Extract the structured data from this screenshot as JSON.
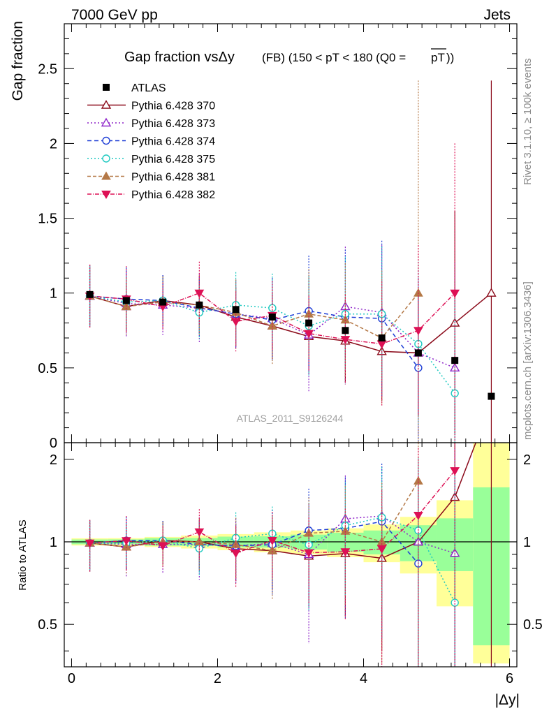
{
  "header": {
    "left": "7000 GeV pp",
    "right": "Jets"
  },
  "side_labels": {
    "rivet": "Rivet 3.1.10, ≥ 100k events",
    "mcplots": "mcplots.cern.ch [arXiv:1306.3436]"
  },
  "chart_data": {
    "type": "scatter",
    "title_main": "Gap fraction vsΔy",
    "title_sub": "(FB) (150 < pT < 180 (Q0 =",
    "title_overline": "pT",
    "title_close": "))",
    "watermark": "ATLAS_2011_S9126244",
    "xlabel": "|Δy|",
    "ylabel_top": "Gap fraction",
    "ylabel_bottom": "Ratio to ATLAS",
    "xlim": [
      -0.1,
      6.1
    ],
    "ylim_top": [
      0,
      2.8
    ],
    "ylim_bottom": [
      0.35,
      2.3
    ],
    "x_ticks": [
      "0",
      "2",
      "4",
      "6"
    ],
    "y_ticks_top": [
      "0",
      "0.5",
      "1",
      "1.5",
      "2",
      "2.5"
    ],
    "y_ticks_bottom": [
      "0.5",
      "1",
      "2"
    ],
    "legend_position": "top-left",
    "x": [
      0.25,
      0.75,
      1.25,
      1.75,
      2.25,
      2.75,
      3.25,
      3.75,
      4.25,
      4.75,
      5.25,
      5.75
    ],
    "data": {
      "name": "ATLAS",
      "values": [
        0.99,
        0.95,
        0.94,
        0.92,
        0.89,
        0.84,
        0.8,
        0.75,
        0.7,
        0.6,
        0.55,
        0.31
      ],
      "band_inner": [
        0.02,
        0.02,
        0.03,
        0.03,
        0.04,
        0.04,
        0.05,
        0.06,
        0.07,
        0.09,
        0.12,
        0.18
      ],
      "band_outer": [
        0.03,
        0.03,
        0.04,
        0.05,
        0.06,
        0.07,
        0.08,
        0.09,
        0.11,
        0.14,
        0.23,
        0.42
      ]
    },
    "series": [
      {
        "name": "Pythia 6.428 370",
        "color": "#8b0a1a",
        "marker": "triangle-up-open",
        "dash": "",
        "values": [
          0.98,
          0.91,
          0.95,
          0.92,
          0.84,
          0.78,
          0.71,
          0.68,
          0.61,
          0.6,
          0.8,
          1.0
        ],
        "errors": [
          0.2,
          0.16,
          0.17,
          0.19,
          0.2,
          0.22,
          0.25,
          0.28,
          0.33,
          0.42,
          0.75,
          1.42
        ]
      },
      {
        "name": "Pythia 6.428 373",
        "color": "#8e24c9",
        "marker": "triangle-up-open",
        "dash": "2,3",
        "values": [
          0.98,
          0.93,
          0.92,
          0.9,
          0.86,
          0.83,
          0.72,
          0.91,
          0.87,
          0.6,
          0.5,
          null
        ],
        "errors": [
          0.2,
          0.22,
          0.2,
          0.23,
          0.22,
          0.27,
          0.38,
          0.4,
          0.45,
          0.55,
          0.7,
          null
        ]
      },
      {
        "name": "Pythia 6.428 374",
        "color": "#1f3fd6",
        "marker": "circle-open",
        "dash": "6,4",
        "values": [
          0.98,
          0.96,
          0.95,
          0.9,
          0.86,
          0.82,
          0.88,
          0.84,
          0.83,
          0.5,
          null,
          null
        ],
        "errors": [
          0.21,
          0.21,
          0.17,
          0.19,
          0.23,
          0.28,
          0.37,
          0.45,
          0.52,
          0.6,
          null,
          null
        ]
      },
      {
        "name": "Pythia 6.428 375",
        "color": "#1ec9c0",
        "marker": "circle-open",
        "dash": "2,3",
        "values": [
          0.98,
          0.94,
          0.95,
          0.87,
          0.92,
          0.9,
          0.78,
          0.86,
          0.86,
          0.66,
          0.33,
          null
        ],
        "errors": [
          0.2,
          0.17,
          0.16,
          0.18,
          0.22,
          0.23,
          0.33,
          0.38,
          0.45,
          0.55,
          0.65,
          null
        ]
      },
      {
        "name": "Pythia 6.428 381",
        "color": "#b47846",
        "marker": "triangle-up",
        "dash": "5,3",
        "values": [
          0.98,
          0.91,
          0.94,
          0.92,
          0.87,
          0.78,
          0.86,
          0.82,
          0.7,
          1.0,
          null,
          null
        ],
        "errors": [
          0.21,
          0.19,
          0.17,
          0.2,
          0.22,
          0.26,
          0.3,
          0.38,
          0.45,
          1.42,
          null,
          null
        ]
      },
      {
        "name": "Pythia 6.428 382",
        "color": "#dd1155",
        "marker": "triangle-down",
        "dash": "6,2,1,2",
        "values": [
          0.98,
          0.96,
          0.91,
          1.0,
          0.81,
          0.85,
          0.73,
          0.69,
          0.66,
          0.75,
          1.0,
          null
        ],
        "errors": [
          0.21,
          0.22,
          0.16,
          0.21,
          0.2,
          0.23,
          0.25,
          0.3,
          0.42,
          0.57,
          1.0,
          null
        ]
      }
    ]
  }
}
